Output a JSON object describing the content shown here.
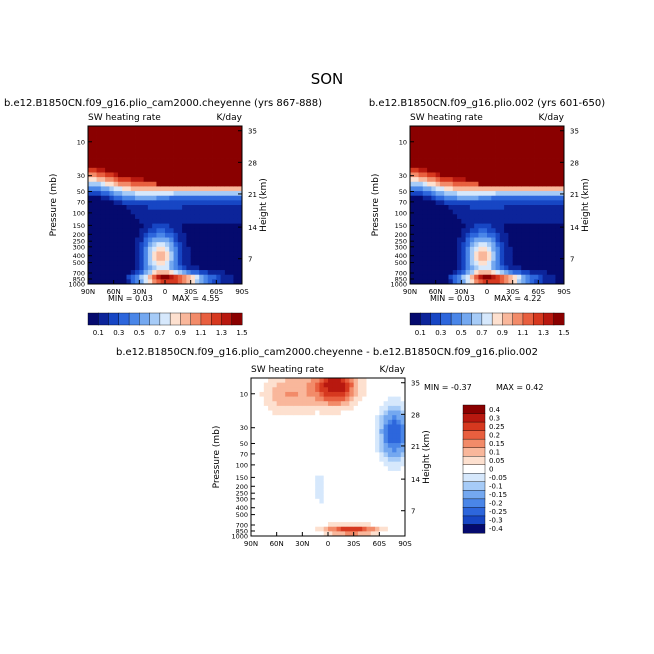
{
  "figure": {
    "title": "SON"
  },
  "chart_data": [
    {
      "type": "contour",
      "title": "b.e12.B1850CN.f09_g16.plio_cam2000.cheyenne (yrs 867-888)",
      "variable": "SW heating rate",
      "units": "K/day",
      "ylabel": "Pressure (mb)",
      "ylabel_right": "Height (km)",
      "x_ticks": [
        "90N",
        "60N",
        "30N",
        "0",
        "30S",
        "60S",
        "90S"
      ],
      "y_ticks": [
        "10",
        "30",
        "50",
        "70",
        "100",
        "150",
        "200",
        "250",
        "300",
        "400",
        "500",
        "700",
        "850",
        "1000"
      ],
      "height_ticks": [
        "35",
        "28",
        "21",
        "14",
        "7"
      ],
      "min": "0.03",
      "max": "4.55",
      "colorbar_levels": [
        0.1,
        0.2,
        0.3,
        0.4,
        0.5,
        0.6,
        0.7,
        0.8,
        0.9,
        1.0,
        1.1,
        1.2,
        1.3,
        1.4,
        1.5
      ],
      "colorbar_labels": [
        "0.1",
        "0.3",
        "0.5",
        "0.7",
        "0.9",
        "1.1",
        "1.3",
        "1.5"
      ]
    },
    {
      "type": "contour",
      "title": "b.e12.B1850CN.f09_g16.plio.002 (yrs 601-650)",
      "variable": "SW heating rate",
      "units": "K/day",
      "ylabel": "Pressure (mb)",
      "ylabel_right": "Height (km)",
      "x_ticks": [
        "90N",
        "60N",
        "30N",
        "0",
        "30S",
        "60S",
        "90S"
      ],
      "y_ticks": [
        "10",
        "30",
        "50",
        "70",
        "100",
        "150",
        "200",
        "250",
        "300",
        "400",
        "500",
        "700",
        "850",
        "1000"
      ],
      "height_ticks": [
        "35",
        "28",
        "21",
        "14",
        "7"
      ],
      "min": "0.03",
      "max": "4.22",
      "colorbar_levels": [
        0.1,
        0.2,
        0.3,
        0.4,
        0.5,
        0.6,
        0.7,
        0.8,
        0.9,
        1.0,
        1.1,
        1.2,
        1.3,
        1.4,
        1.5
      ],
      "colorbar_labels": [
        "0.1",
        "0.3",
        "0.5",
        "0.7",
        "0.9",
        "1.1",
        "1.3",
        "1.5"
      ]
    },
    {
      "type": "contour",
      "title": "b.e12.B1850CN.f09_g16.plio_cam2000.cheyenne - b.e12.B1850CN.f09_g16.plio.002",
      "variable": "SW heating rate",
      "units": "K/day",
      "ylabel": "Pressure (mb)",
      "ylabel_right": "Height (km)",
      "x_ticks": [
        "90N",
        "60N",
        "30N",
        "0",
        "30S",
        "60S",
        "90S"
      ],
      "y_ticks": [
        "10",
        "30",
        "50",
        "70",
        "100",
        "150",
        "200",
        "250",
        "300",
        "400",
        "500",
        "700",
        "850",
        "1000"
      ],
      "height_ticks": [
        "35",
        "28",
        "21",
        "14",
        "7"
      ],
      "min": "-0.37",
      "max": "0.42",
      "colorbar_levels": [
        -0.4,
        -0.3,
        -0.25,
        -0.2,
        -0.15,
        -0.1,
        -0.05,
        0,
        0.05,
        0.1,
        0.15,
        0.2,
        0.25,
        0.3,
        0.4
      ],
      "colorbar_labels": [
        "0.4",
        "0.3",
        "0.25",
        "0.2",
        "0.15",
        "0.1",
        "0.05",
        "0",
        "-0.05",
        "-0.1",
        "-0.15",
        "-0.2",
        "-0.25",
        "-0.3",
        "-0.4"
      ]
    }
  ],
  "labels": {
    "min_prefix": "MIN =",
    "max_prefix": "MAX ="
  },
  "colors": {
    "abs_scale": [
      "#050a6e",
      "#0c249a",
      "#1746c4",
      "#2d66dc",
      "#4a86e8",
      "#74a8f0",
      "#a6cbf7",
      "#d6e8fc",
      "#fde0cf",
      "#f9b79b",
      "#f28b69",
      "#e85f3f",
      "#d6381f",
      "#b8180f",
      "#8a0000"
    ],
    "diff_scale": [
      "#8a0000",
      "#b8180f",
      "#d6381f",
      "#e85f3f",
      "#f28b69",
      "#f9b79b",
      "#fde0cf",
      "#ffffff",
      "#d6e8fc",
      "#a6cbf7",
      "#74a8f0",
      "#4a86e8",
      "#2d66dc",
      "#1746c4",
      "#050a6e"
    ]
  }
}
